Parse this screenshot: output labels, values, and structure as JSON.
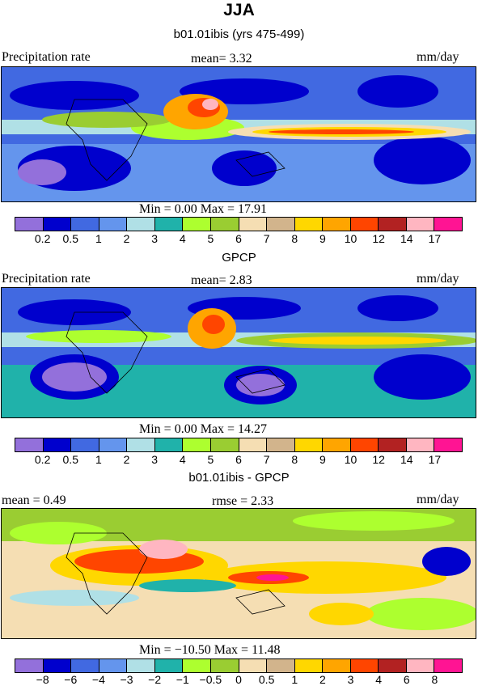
{
  "season": "JJA",
  "panels": [
    {
      "subtitle": "b01.01ibis (yrs 475-499)",
      "left_label": "Precipitation rate",
      "center_label": "mean=   3.32",
      "right_label": "mm/day",
      "stats": "Min =   0.00 Max =   17.91",
      "ticks": [
        "0.2",
        "0.5",
        "1",
        "2",
        "3",
        "4",
        "5",
        "6",
        "7",
        "8",
        "9",
        "10",
        "12",
        "14",
        "17"
      ],
      "colors": [
        "#9370db",
        "#0000cd",
        "#4169e1",
        "#6495ed",
        "#b0e0e6",
        "#20b2aa",
        "#adff2f",
        "#9acd32",
        "#f5deb3",
        "#d2b48c",
        "#ffd700",
        "#ffa500",
        "#ff4500",
        "#b22222",
        "#ffb6c1",
        "#ff1493"
      ]
    },
    {
      "subtitle": "GPCP",
      "left_label": "Precipitation rate",
      "center_label": "mean=   2.83",
      "right_label": "mm/day",
      "stats": "Min =   0.00 Max =   14.27",
      "ticks": [
        "0.2",
        "0.5",
        "1",
        "2",
        "3",
        "4",
        "5",
        "6",
        "7",
        "8",
        "9",
        "10",
        "12",
        "14",
        "17"
      ],
      "colors": [
        "#9370db",
        "#0000cd",
        "#4169e1",
        "#6495ed",
        "#b0e0e6",
        "#20b2aa",
        "#adff2f",
        "#9acd32",
        "#f5deb3",
        "#d2b48c",
        "#ffd700",
        "#ffa500",
        "#ff4500",
        "#b22222",
        "#ffb6c1",
        "#ff1493"
      ]
    },
    {
      "subtitle": "b01.01ibis - GPCP",
      "left_label": "mean =     0.49",
      "center_label": "rmse =     2.33",
      "right_label": "mm/day",
      "stats": "Min = −10.50 Max =   11.48",
      "ticks": [
        "−8",
        "−6",
        "−4",
        "−3",
        "−2",
        "−1",
        "−0.5",
        "0",
        "0.5",
        "1",
        "2",
        "3",
        "4",
        "6",
        "8"
      ],
      "colors": [
        "#9370db",
        "#0000cd",
        "#4169e1",
        "#6495ed",
        "#b0e0e6",
        "#20b2aa",
        "#adff2f",
        "#9acd32",
        "#f5deb3",
        "#d2b48c",
        "#ffd700",
        "#ffa500",
        "#ff4500",
        "#b22222",
        "#ffb6c1",
        "#ff1493"
      ]
    }
  ]
}
